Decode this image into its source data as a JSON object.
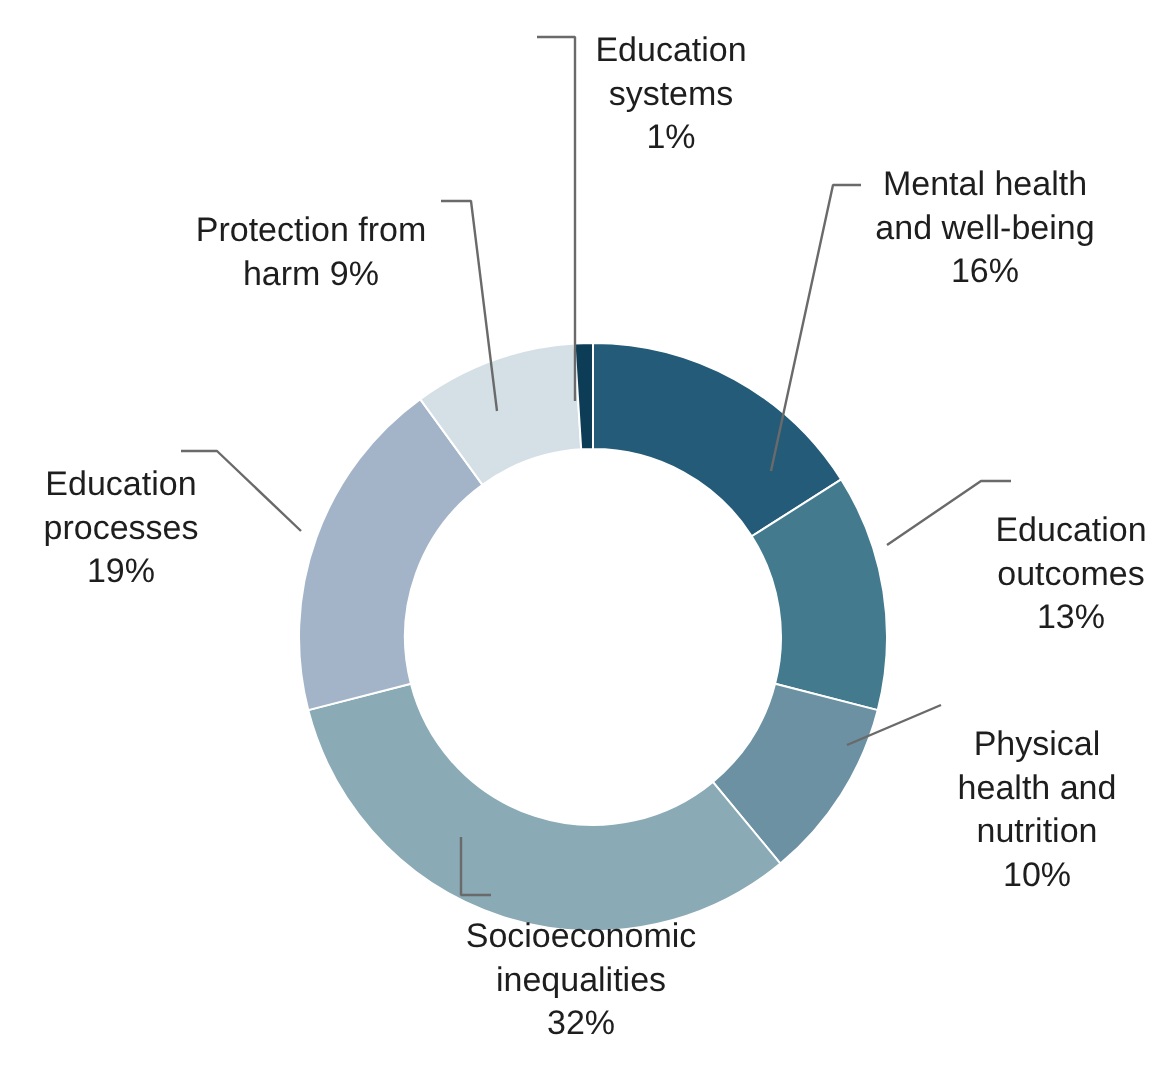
{
  "chart_data": {
    "type": "donut",
    "categories": [
      "Mental health\nand well-being",
      "Education\noutcomes",
      "Physical\nhealth and\nnutrition",
      "Socioeconomic\ninequalities",
      "Education\nprocesses",
      "Protection from\nharm",
      "Education\nsystems"
    ],
    "values": [
      16,
      13,
      10,
      32,
      19,
      9,
      1
    ],
    "value_labels": [
      "16%",
      "13%",
      "10%",
      "32%",
      "19%",
      "9%",
      "1%"
    ],
    "colors": [
      "#245b78",
      "#437a8e",
      "#6b91a3",
      "#8aaab6",
      "#a3b4c9",
      "#d5e0e6",
      "#0d3d56"
    ]
  }
}
